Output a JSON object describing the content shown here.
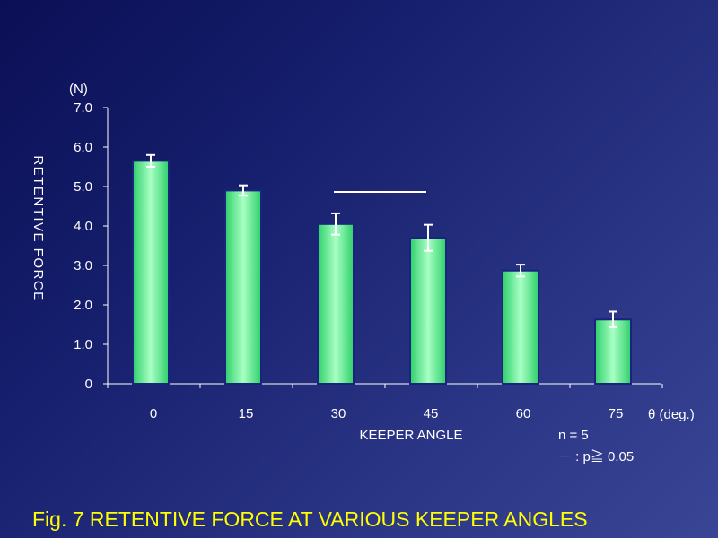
{
  "chart_data": {
    "type": "bar",
    "categories": [
      "0",
      "15",
      "30",
      "45",
      "60",
      "75"
    ],
    "values": [
      5.65,
      4.9,
      4.05,
      3.7,
      2.87,
      1.63
    ],
    "errors": [
      0.15,
      0.13,
      0.27,
      0.33,
      0.15,
      0.2
    ],
    "yunit": "(N)",
    "ylabel": "RETENTIVE FORCE",
    "xlabel": "KEEPER ANGLE",
    "xunit": "θ (deg.)",
    "ylim": [
      0,
      7
    ],
    "yticks": [
      "0",
      "1.0",
      "2.0",
      "3.0",
      "4.0",
      "5.0",
      "6.0",
      "7.0"
    ],
    "significance": {
      "between": [
        "30",
        "45"
      ]
    },
    "notes": [
      "n = 5",
      "－ : p≧ 0.05"
    ],
    "bar_color": "#3ddc7a",
    "bar_edge_color": "#1a237e"
  },
  "caption": "Fig. 7  RETENTIVE FORCE AT VARIOUS KEEPER ANGLES",
  "colors": {
    "text": "#ffffff",
    "caption": "#ffff00"
  }
}
